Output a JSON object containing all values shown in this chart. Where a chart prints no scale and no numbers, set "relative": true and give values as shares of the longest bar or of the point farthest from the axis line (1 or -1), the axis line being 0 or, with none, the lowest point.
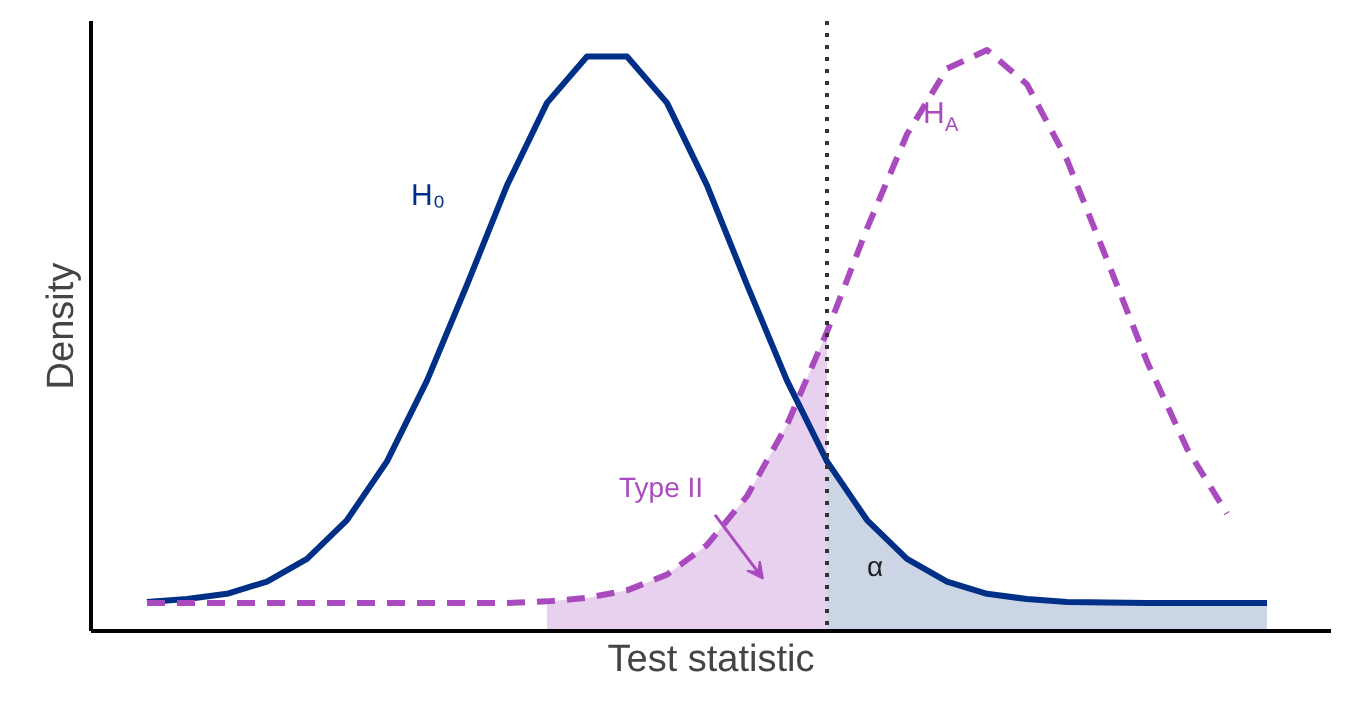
{
  "chart_data": {
    "type": "line",
    "relative": true,
    "xlabel": "Test statistic",
    "ylabel": "Density",
    "categories": [
      null,
      null,
      null,
      null,
      null,
      null,
      null,
      null,
      null,
      null,
      null,
      null,
      null,
      null,
      null,
      null,
      null,
      null,
      null,
      null,
      null,
      null,
      null,
      null,
      null,
      null,
      null,
      null,
      null
    ],
    "series": [
      {
        "type": "area",
        "color": "#e8d1ee",
        "values": [
          null,
          null,
          null,
          null,
          null,
          null,
          null,
          null,
          null,
          null,
          0.051,
          0.057,
          0.07,
          0.097,
          0.148,
          0.232,
          0.355,
          0.515,
          null,
          null,
          null,
          null,
          null,
          null,
          null,
          null,
          null,
          null,
          null
        ]
      },
      {
        "type": "area",
        "color": "#ccd5e6",
        "values": [
          null,
          null,
          null,
          null,
          null,
          null,
          null,
          null,
          null,
          null,
          null,
          null,
          null,
          null,
          null,
          null,
          null,
          0.292,
          0.191,
          0.124,
          0.085,
          0.064,
          0.055,
          0.05,
          0.049,
          0.048,
          0.048,
          0.048,
          0.048
        ]
      },
      {
        "color": "#002f87",
        "line_style": "solid",
        "values": [
          0.05,
          0.055,
          0.064,
          0.085,
          0.124,
          0.191,
          0.292,
          0.431,
          0.596,
          0.767,
          0.909,
          0.989,
          0.989,
          0.909,
          0.767,
          0.596,
          0.431,
          0.292,
          0.191,
          0.124,
          0.085,
          0.064,
          0.055,
          0.05,
          0.049,
          0.048,
          0.048,
          0.048,
          0.048
        ]
      },
      {
        "color": "#a94bbf",
        "line_style": "dashed",
        "values": [
          0.048,
          0.048,
          0.048,
          0.048,
          0.048,
          0.048,
          0.048,
          0.048,
          0.048,
          0.048,
          0.051,
          0.057,
          0.07,
          0.097,
          0.148,
          0.232,
          0.355,
          0.515,
          0.693,
          0.855,
          0.968,
          1.0,
          0.941,
          0.811,
          0.639,
          0.464,
          0.314,
          0.202,
          null
        ]
      }
    ],
    "annotations": [
      "H₀",
      "H$_{A}$",
      "Type II",
      "α"
    ]
  }
}
